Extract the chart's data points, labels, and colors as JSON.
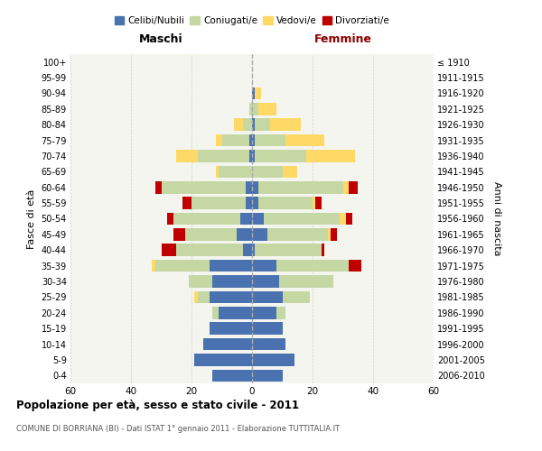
{
  "age_groups": [
    "100+",
    "95-99",
    "90-94",
    "85-89",
    "80-84",
    "75-79",
    "70-74",
    "65-69",
    "60-64",
    "55-59",
    "50-54",
    "45-49",
    "40-44",
    "35-39",
    "30-34",
    "25-29",
    "20-24",
    "15-19",
    "10-14",
    "5-9",
    "0-4"
  ],
  "birth_years": [
    "≤ 1910",
    "1911-1915",
    "1916-1920",
    "1921-1925",
    "1926-1930",
    "1931-1935",
    "1936-1940",
    "1941-1945",
    "1946-1950",
    "1951-1955",
    "1956-1960",
    "1961-1965",
    "1966-1970",
    "1971-1975",
    "1976-1980",
    "1981-1985",
    "1986-1990",
    "1991-1995",
    "1996-2000",
    "2001-2005",
    "2006-2010"
  ],
  "male": {
    "celibi": [
      0,
      0,
      0,
      0,
      0,
      1,
      1,
      0,
      2,
      2,
      4,
      5,
      3,
      14,
      13,
      14,
      11,
      14,
      16,
      19,
      13
    ],
    "coniugati": [
      0,
      0,
      0,
      1,
      3,
      9,
      17,
      11,
      28,
      18,
      22,
      17,
      22,
      18,
      8,
      4,
      2,
      0,
      0,
      0,
      0
    ],
    "vedovi": [
      0,
      0,
      0,
      0,
      3,
      2,
      7,
      1,
      0,
      0,
      0,
      0,
      0,
      1,
      0,
      1,
      0,
      0,
      0,
      0,
      0
    ],
    "divorziati": [
      0,
      0,
      0,
      0,
      0,
      0,
      0,
      0,
      2,
      3,
      2,
      4,
      5,
      0,
      0,
      0,
      0,
      0,
      0,
      0,
      0
    ]
  },
  "female": {
    "nubili": [
      0,
      0,
      1,
      0,
      1,
      1,
      1,
      0,
      2,
      2,
      4,
      5,
      1,
      8,
      9,
      10,
      8,
      10,
      11,
      14,
      10
    ],
    "coniugate": [
      0,
      0,
      0,
      2,
      5,
      10,
      17,
      10,
      28,
      18,
      25,
      20,
      22,
      24,
      18,
      9,
      3,
      0,
      0,
      0,
      0
    ],
    "vedove": [
      0,
      0,
      2,
      6,
      10,
      13,
      16,
      5,
      2,
      1,
      2,
      1,
      0,
      0,
      0,
      0,
      0,
      0,
      0,
      0,
      0
    ],
    "divorziate": [
      0,
      0,
      0,
      0,
      0,
      0,
      0,
      0,
      3,
      2,
      2,
      2,
      1,
      4,
      0,
      0,
      0,
      0,
      0,
      0,
      0
    ]
  },
  "colors": {
    "celibi": "#4a72b0",
    "coniugati": "#c5d8a4",
    "vedovi": "#ffd966",
    "divorziati": "#c00000"
  },
  "title": "Popolazione per età, sesso e stato civile - 2011",
  "subtitle": "COMUNE DI BORRIANA (BI) - Dati ISTAT 1° gennaio 2011 - Elaborazione TUTTITALIA.IT",
  "ylabel_left": "Fasce di età",
  "ylabel_right": "Anni di nascita",
  "header_maschi": "Maschi",
  "header_femmine": "Femmine",
  "xlim": 60,
  "bg_color": "#ffffff",
  "plot_bg": "#f5f5f0",
  "grid_color": "#cccccc",
  "legend_labels": [
    "Celibi/Nubili",
    "Coniugati/e",
    "Vedovi/e",
    "Divorziati/e"
  ]
}
